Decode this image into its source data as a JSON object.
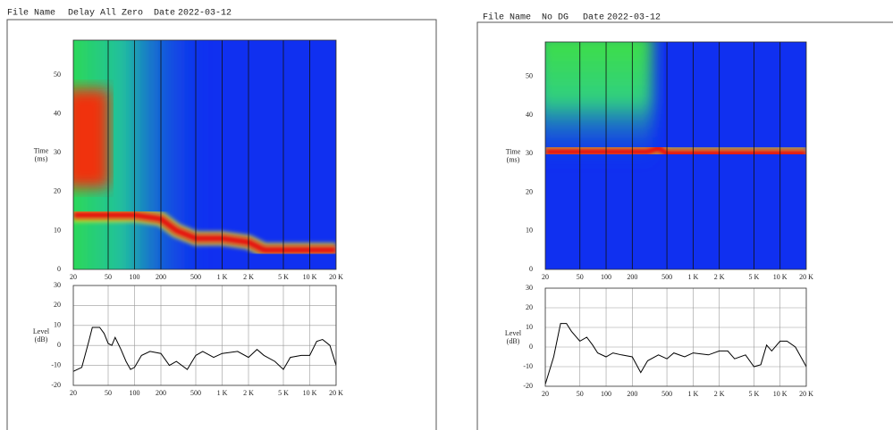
{
  "headers": [
    {
      "file_name_label": "File Name",
      "file_name": "Delay All Zero",
      "date_label": "Date",
      "date": "2022-03-12"
    },
    {
      "file_name_label": "File Name",
      "file_name": "No DG",
      "date_label": "Date",
      "date": "2022-03-12"
    }
  ],
  "chart_data": [
    {
      "type": "spectrogram",
      "ylabel": [
        "Time",
        "(ms)"
      ],
      "log_x": true,
      "xlim": [
        20,
        20000
      ],
      "xticks": [
        20,
        50,
        100,
        200,
        500,
        {
          "value": 1000,
          "label": "1 K"
        },
        {
          "value": 2000,
          "label": "2 K"
        },
        {
          "value": 5000,
          "label": "5 K"
        },
        {
          "value": 10000,
          "label": "10 K"
        },
        {
          "value": 20000,
          "label": "20 K"
        }
      ],
      "ylim": [
        0,
        59
      ],
      "yticks": [
        0,
        10,
        20,
        30,
        40,
        50
      ],
      "color": "#e81010",
      "x": [
        20,
        50,
        100,
        200,
        300,
        500,
        1000,
        2000,
        3000,
        20000
      ],
      "values": [
        14,
        14,
        14,
        13,
        10,
        8,
        8,
        7,
        5,
        5
      ]
    },
    {
      "type": "line",
      "ylabel": [
        "Level",
        "(dB)"
      ],
      "log_x": true,
      "xlim": [
        20,
        20000
      ],
      "xticks": [
        20,
        50,
        100,
        200,
        500,
        {
          "value": 1000,
          "label": "1 K"
        },
        {
          "value": 2000,
          "label": "2 K"
        },
        {
          "value": 5000,
          "label": "5 K"
        },
        {
          "value": 10000,
          "label": "10 K"
        },
        {
          "value": 20000,
          "label": "20 K"
        }
      ],
      "ylim": [
        -20,
        30
      ],
      "yticks": [
        -20,
        -10,
        0,
        10,
        20,
        30
      ],
      "grid": true,
      "color": "#000000",
      "x": [
        20,
        25,
        30,
        33,
        40,
        45,
        50,
        55,
        60,
        70,
        80,
        90,
        100,
        120,
        150,
        200,
        250,
        300,
        400,
        500,
        600,
        800,
        1000,
        1500,
        2000,
        2500,
        3000,
        4000,
        5000,
        6000,
        8000,
        10000,
        12000,
        14000,
        17000,
        20000
      ],
      "values": [
        -13,
        -11,
        2,
        9,
        9,
        6,
        1,
        0,
        4,
        -2,
        -8,
        -12,
        -11,
        -5,
        -3,
        -4,
        -10,
        -8,
        -12,
        -5,
        -3,
        -6,
        -4,
        -3,
        -6,
        -2,
        -5,
        -8,
        -12,
        -6,
        -5,
        -5,
        2,
        3,
        0,
        -10
      ]
    },
    {
      "type": "spectrogram",
      "ylabel": [
        "Time",
        "(ms)"
      ],
      "log_x": true,
      "xlim": [
        20,
        20000
      ],
      "xticks": [
        20,
        50,
        100,
        200,
        500,
        {
          "value": 1000,
          "label": "1 K"
        },
        {
          "value": 2000,
          "label": "2 K"
        },
        {
          "value": 5000,
          "label": "5 K"
        },
        {
          "value": 10000,
          "label": "10 K"
        },
        {
          "value": 20000,
          "label": "20 K"
        }
      ],
      "ylim": [
        0,
        59
      ],
      "yticks": [
        0,
        10,
        20,
        30,
        40,
        50
      ],
      "color": "#e81010",
      "x": [
        20,
        100,
        300,
        400,
        500,
        1000,
        2000,
        5000,
        20000
      ],
      "values": [
        30.5,
        30.5,
        30.5,
        31.5,
        30,
        30,
        30,
        30,
        30
      ]
    },
    {
      "type": "line",
      "ylabel": [
        "Level",
        "(dB)"
      ],
      "log_x": true,
      "xlim": [
        20,
        20000
      ],
      "xticks": [
        20,
        50,
        100,
        200,
        500,
        {
          "value": 1000,
          "label": "1 K"
        },
        {
          "value": 2000,
          "label": "2 K"
        },
        {
          "value": 5000,
          "label": "5 K"
        },
        {
          "value": 10000,
          "label": "10 K"
        },
        {
          "value": 20000,
          "label": "20 K"
        }
      ],
      "ylim": [
        -20,
        30
      ],
      "yticks": [
        -20,
        -10,
        0,
        10,
        20,
        30
      ],
      "grid": true,
      "color": "#000000",
      "x": [
        20,
        25,
        30,
        35,
        40,
        50,
        60,
        70,
        80,
        100,
        120,
        150,
        200,
        250,
        300,
        400,
        500,
        600,
        800,
        1000,
        1500,
        2000,
        2500,
        3000,
        4000,
        5000,
        6000,
        7000,
        8000,
        10000,
        12000,
        15000,
        20000
      ],
      "values": [
        -19,
        -5,
        12,
        12,
        8,
        3,
        5,
        1,
        -3,
        -5,
        -3,
        -4,
        -5,
        -13,
        -7,
        -4,
        -6,
        -3,
        -5,
        -3,
        -4,
        -2,
        -2,
        -6,
        -4,
        -10,
        -9,
        1,
        -2,
        3,
        3,
        0,
        -10
      ]
    }
  ]
}
